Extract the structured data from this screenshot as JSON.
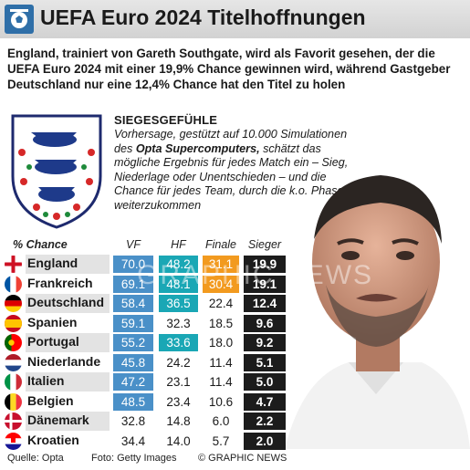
{
  "header": {
    "title": "UEFA Euro 2024 Titelhoffnungen"
  },
  "intro": "England, trainiert von Gareth Southgate, wird als Favorit gesehen, der die UEFA Euro 2024 mit einer 19,9% Chance gewinnen wird, während Gastgeber Deutschland nur eine 12,4% Chance hat den Titel zu holen",
  "box": {
    "title": "SIEGESGEFÜHLE",
    "text_before": "Vorhersage, gestützt auf 10.000 Simulationen des ",
    "text_bold": "Opta Supercomputers,",
    "text_after": " schätzt das mögliche Ergebnis für jedes Match ein – Sieg, Niederlage oder Unentschieden – und die Chance für jedes Team, durch die k.o. Phase weiterzukommen"
  },
  "watermark": "GRAPHIC NEWS",
  "footer": {
    "source": "Quelle: Opta",
    "photo": "Foto: Getty Images",
    "copyright": "© GRAPHIC NEWS"
  },
  "colors": {
    "vf": "#4a90c8",
    "hf": "#1aa7b5",
    "finale": "#f29a1f",
    "sieger": "#1c1c1c"
  },
  "chart_data": {
    "type": "table",
    "row_header": "% Chance",
    "columns": [
      "VF",
      "HF",
      "Finale",
      "Sieger"
    ],
    "rows": [
      {
        "team": "England",
        "flag": "england-flag",
        "values": [
          70.0,
          48.2,
          31.1,
          19.9
        ],
        "highlight": [
          true,
          true,
          true,
          true
        ]
      },
      {
        "team": "Frankreich",
        "flag": "france-flag",
        "values": [
          69.1,
          48.1,
          30.4,
          19.1
        ],
        "highlight": [
          true,
          true,
          true,
          true
        ]
      },
      {
        "team": "Deutschland",
        "flag": "germany-flag",
        "values": [
          58.4,
          36.5,
          22.4,
          12.4
        ],
        "highlight": [
          true,
          true,
          false,
          true
        ]
      },
      {
        "team": "Spanien",
        "flag": "spain-flag",
        "values": [
          59.1,
          32.3,
          18.5,
          9.6
        ],
        "highlight": [
          true,
          false,
          false,
          true
        ]
      },
      {
        "team": "Portugal",
        "flag": "portugal-flag",
        "values": [
          55.2,
          33.6,
          18.0,
          9.2
        ],
        "highlight": [
          true,
          true,
          false,
          true
        ]
      },
      {
        "team": "Niederlande",
        "flag": "netherlands-flag",
        "values": [
          45.8,
          24.2,
          11.4,
          5.1
        ],
        "highlight": [
          true,
          false,
          false,
          true
        ]
      },
      {
        "team": "Italien",
        "flag": "italy-flag",
        "values": [
          47.2,
          23.1,
          11.4,
          5.0
        ],
        "highlight": [
          true,
          false,
          false,
          true
        ]
      },
      {
        "team": "Belgien",
        "flag": "belgium-flag",
        "values": [
          48.5,
          23.4,
          10.6,
          4.7
        ],
        "highlight": [
          true,
          false,
          false,
          true
        ]
      },
      {
        "team": "Dänemark",
        "flag": "denmark-flag",
        "values": [
          32.8,
          14.8,
          6.0,
          2.2
        ],
        "highlight": [
          false,
          false,
          false,
          true
        ]
      },
      {
        "team": "Kroatien",
        "flag": "croatia-flag",
        "values": [
          34.4,
          14.0,
          5.7,
          2.0
        ],
        "highlight": [
          false,
          false,
          false,
          true
        ]
      }
    ]
  }
}
